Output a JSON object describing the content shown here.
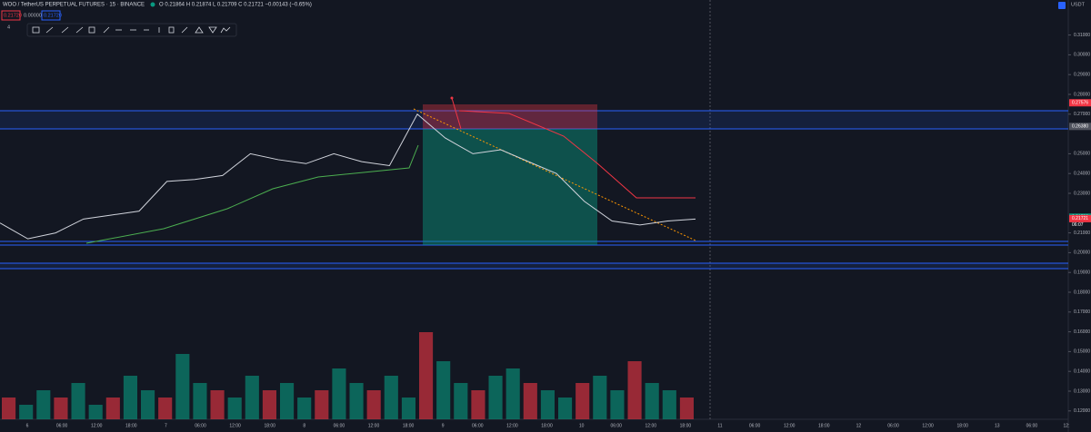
{
  "header": {
    "symbol": "WOO / TetherUS PERPETUAL FUTURES · 15 · BINANCE",
    "ohlc": "O 0.21864 H 0.21874 L 0.21709 C 0.21721 −0.00143 (−0.65%)",
    "sell": "0.21720",
    "spread": "0.00000",
    "buy": "0.21720",
    "count": "4",
    "currency": "USDT"
  },
  "price_axis": {
    "ticks": [
      "0.31000",
      "0.30000",
      "0.29000",
      "0.28000",
      "0.27000",
      "0.25000",
      "0.24000",
      "0.23000",
      "0.21000",
      "0.20000",
      "0.19000",
      "0.18000",
      "0.17000",
      "0.16000",
      "0.15000",
      "0.14000",
      "0.13000",
      "0.12000"
    ],
    "tick_values": [
      0.31,
      0.3,
      0.29,
      0.28,
      0.27,
      0.25,
      0.24,
      0.23,
      0.21,
      0.2,
      0.19,
      0.18,
      0.17,
      0.16,
      0.15,
      0.14,
      0.13,
      0.12
    ],
    "labels": [
      {
        "text": "0.27576",
        "value": 0.27576,
        "color": "#f23645"
      },
      {
        "text": "0.26380",
        "value": 0.2638,
        "color": "#50535e"
      },
      {
        "text": "0.21793",
        "value": 0.21793,
        "color": "#089981"
      },
      {
        "text": "0.21721",
        "value": 0.21721,
        "color": "#f23645"
      }
    ],
    "countdown": "06:07"
  },
  "time_axis": [
    "6",
    "06:00",
    "12:00",
    "18:00",
    "7",
    "06:00",
    "12:00",
    "18:00",
    "8",
    "06:00",
    "12:00",
    "18:00",
    "9",
    "06:00",
    "12:00",
    "18:00",
    "10",
    "06:00",
    "12:00",
    "18:00",
    "11",
    "06:00",
    "12:00",
    "18:00",
    "12",
    "06:00",
    "12:00",
    "18:00",
    "13",
    "06:00",
    "12:"
  ],
  "price_line": [
    0.215,
    0.207,
    0.21,
    0.217,
    0.219,
    0.221,
    0.236,
    0.237,
    0.239,
    0.25,
    0.247,
    0.245,
    0.25,
    0.246,
    0.244,
    0.27,
    0.258,
    0.25,
    0.252,
    0.246,
    0.24,
    0.226,
    0.216,
    0.214,
    0.216,
    0.217
  ],
  "volume": [
    3,
    2,
    4,
    3,
    5,
    2,
    3,
    6,
    4,
    3,
    9,
    5,
    4,
    3,
    6,
    4,
    5,
    3,
    4,
    7,
    5,
    4,
    6,
    3,
    12,
    8,
    5,
    4,
    6,
    7,
    5,
    4,
    3,
    5,
    6,
    4,
    8,
    5,
    4,
    3
  ]
}
